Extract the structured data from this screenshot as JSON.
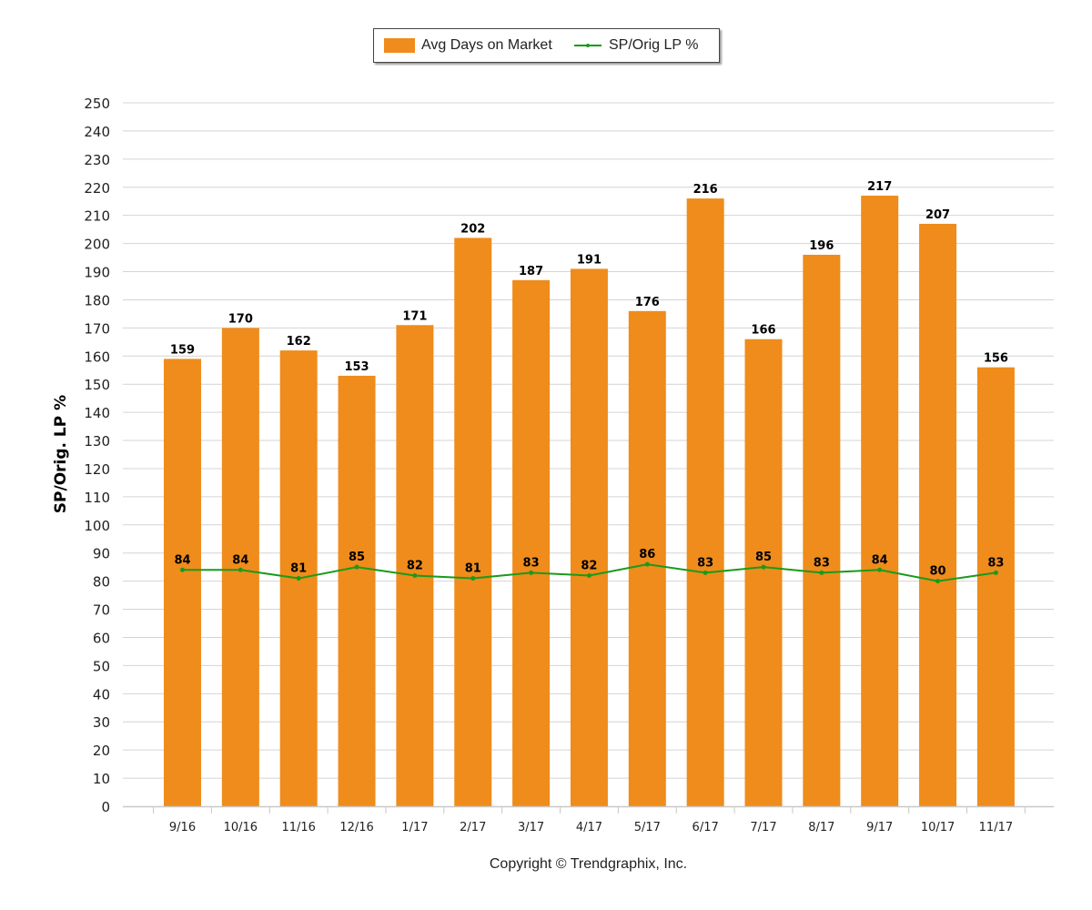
{
  "chart_data": {
    "type": "bar",
    "title": "",
    "xlabel": "",
    "ylabel": "SP/Orig. LP %",
    "ylim": [
      0,
      250
    ],
    "yticks": [
      "0",
      "10",
      "20",
      "30",
      "40",
      "50",
      "60",
      "70",
      "80",
      "90",
      "100",
      "110",
      "120",
      "130",
      "140",
      "150",
      "160",
      "170",
      "180",
      "190",
      "200",
      "210",
      "220",
      "230",
      "240",
      "250"
    ],
    "grid": true,
    "legend_position": "top-center",
    "categories": [
      "9/16",
      "10/16",
      "11/16",
      "12/16",
      "1/17",
      "2/17",
      "3/17",
      "4/17",
      "5/17",
      "6/17",
      "7/17",
      "8/17",
      "9/17",
      "10/17",
      "11/17"
    ],
    "series": [
      {
        "name": "Avg Days on Market",
        "kind": "bar",
        "color": "#ef8c1b",
        "values": [
          159,
          170,
          162,
          153,
          171,
          202,
          187,
          191,
          176,
          216,
          166,
          196,
          217,
          207,
          156
        ]
      },
      {
        "name": "SP/Orig LP %",
        "kind": "line",
        "color": "#1a9a1a",
        "values": [
          84,
          84,
          81,
          85,
          82,
          81,
          83,
          82,
          86,
          83,
          85,
          83,
          84,
          80,
          83
        ]
      }
    ]
  },
  "footer": {
    "copyright": "Copyright © Trendgraphix, Inc."
  }
}
